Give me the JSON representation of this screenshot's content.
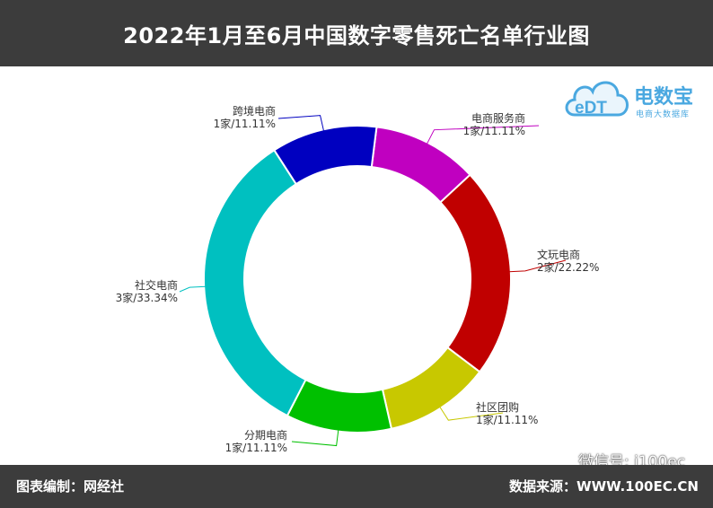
{
  "header": {
    "title": "2022年1月至6月中国数字零售死亡名单行业图"
  },
  "logo": {
    "mark": "eDT",
    "brand": "电数宝",
    "subtitle": "电商大数据库"
  },
  "watermark": {
    "text": "微信号: i100ec"
  },
  "footer": {
    "left": "图表编制：网经社",
    "right": "数据来源：WWW.100EC.CN"
  },
  "chart_data": {
    "type": "pie",
    "variant": "donut",
    "slices": [
      {
        "name": "电商服务商",
        "count": 1,
        "unit": "家",
        "percent": 11.11,
        "label": "1家/11.11%",
        "color": "#c000c0"
      },
      {
        "name": "文玩电商",
        "count": 2,
        "unit": "家",
        "percent": 22.22,
        "label": "2家/22.22%",
        "color": "#c00000"
      },
      {
        "name": "社区团购",
        "count": 1,
        "unit": "家",
        "percent": 11.11,
        "label": "1家/11.11%",
        "color": "#c8c800"
      },
      {
        "name": "分期电商",
        "count": 1,
        "unit": "家",
        "percent": 11.11,
        "label": "1家/11.11%",
        "color": "#00c000"
      },
      {
        "name": "社交电商",
        "count": 3,
        "unit": "家",
        "percent": 33.34,
        "label": "3家/33.34%",
        "color": "#00c0c0"
      },
      {
        "name": "跨境电商",
        "count": 1,
        "unit": "家",
        "percent": 11.11,
        "label": "1家/11.11%",
        "color": "#0000c0"
      }
    ],
    "legend": "none"
  }
}
